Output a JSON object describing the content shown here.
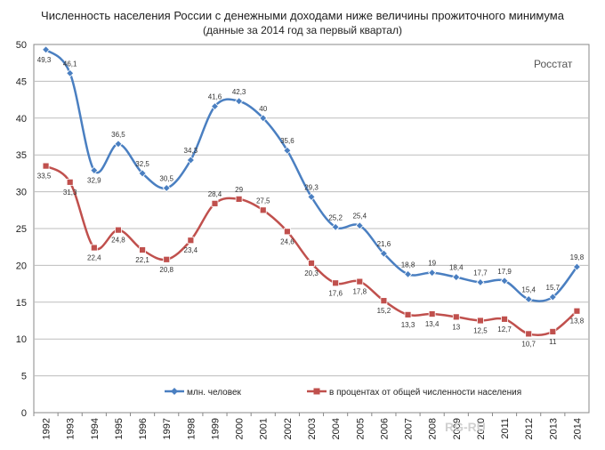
{
  "chart_data": {
    "type": "line",
    "title": "Численность населения России с денежными доходами ниже величины прожиточного минимума",
    "subtitle": "(данные за 2014 год за первый квартал)",
    "source": "Росстат",
    "watermark": "RG-RU",
    "categories": [
      "1992",
      "1993",
      "1994",
      "1995",
      "1996",
      "1997",
      "1998",
      "1999",
      "2000",
      "2001",
      "2002",
      "2003",
      "2004",
      "2005",
      "2006",
      "2007",
      "2008",
      "2009",
      "2010",
      "2011",
      "2012",
      "2013",
      "2014"
    ],
    "ylim": [
      0,
      50
    ],
    "yticks": [
      "0",
      "5",
      "10",
      "15",
      "20",
      "25",
      "30",
      "35",
      "40",
      "45",
      "50"
    ],
    "grid": true,
    "legend_position": "bottom",
    "series": [
      {
        "name": "млн. человек",
        "color": "#4a7fc1",
        "marker": "diamond",
        "values": [
          49.3,
          46.1,
          32.9,
          36.5,
          32.5,
          30.5,
          34.3,
          41.6,
          42.3,
          40,
          35.6,
          29.3,
          25.2,
          25.4,
          21.6,
          18.8,
          19,
          18.4,
          17.7,
          17.9,
          15.4,
          15.7,
          19.8
        ],
        "labels": [
          "49,3",
          "46,1",
          "32,9",
          "36,5",
          "32,5",
          "30,5",
          "34,3",
          "41,6",
          "42,3",
          "40",
          "35,6",
          "29,3",
          "25,2",
          "25,4",
          "21,6",
          "18,8",
          "19",
          "18,4",
          "17,7",
          "17,9",
          "15,4",
          "15,7",
          "19,8"
        ]
      },
      {
        "name": "в процентах от общей численности населения",
        "color": "#c0504d",
        "marker": "square",
        "values": [
          33.5,
          31.3,
          22.4,
          24.8,
          22.1,
          20.8,
          23.4,
          28.4,
          29,
          27.5,
          24.6,
          20.3,
          17.6,
          17.8,
          15.2,
          13.3,
          13.4,
          13,
          12.5,
          12.7,
          10.7,
          11,
          13.8
        ],
        "labels": [
          "33,5",
          "31,3",
          "22,4",
          "24,8",
          "22,1",
          "20,8",
          "23,4",
          "28,4",
          "29",
          "27,5",
          "24,6",
          "20,3",
          "17,6",
          "17,8",
          "15,2",
          "13,3",
          "13,4",
          "13",
          "12,5",
          "12,7",
          "10,7",
          "11",
          "13,8"
        ]
      }
    ]
  }
}
